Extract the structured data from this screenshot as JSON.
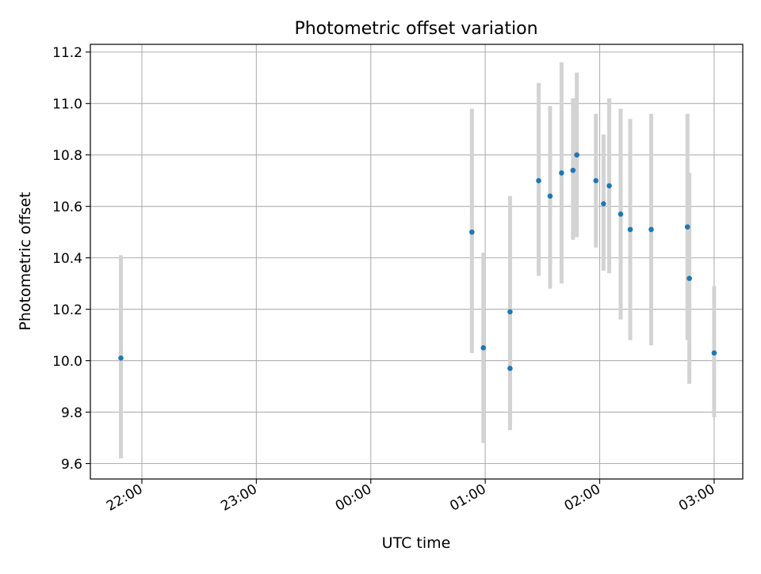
{
  "chart_data": {
    "type": "scatter",
    "title": "Photometric offset variation",
    "xlabel": "UTC time",
    "ylabel": "Photometric offset",
    "xlim": [
      "21:33",
      "03:15"
    ],
    "ylim": [
      9.54,
      11.23
    ],
    "x_ticks": [
      "22:00",
      "23:00",
      "00:00",
      "01:00",
      "02:00",
      "03:00"
    ],
    "y_ticks": [
      "9.6",
      "9.8",
      "10.0",
      "10.2",
      "10.4",
      "10.6",
      "10.8",
      "11.0",
      "11.2"
    ],
    "grid": true,
    "point_color": "#1f77b4",
    "errorbar_color": "#d3d3d3",
    "series": [
      {
        "x": [
          "21:49",
          "00:53",
          "00:59",
          "01:13",
          "01:13",
          "01:28",
          "01:34",
          "01:40",
          "01:46",
          "01:48",
          "01:58",
          "02:02",
          "02:05",
          "02:11",
          "02:16",
          "02:27",
          "02:46",
          "02:47",
          "03:00"
        ],
        "y": [
          10.01,
          10.5,
          10.05,
          9.97,
          10.19,
          10.7,
          10.64,
          10.73,
          10.74,
          10.8,
          10.7,
          10.61,
          10.68,
          10.57,
          10.51,
          10.51,
          10.52,
          10.32,
          10.03
        ],
        "err_low": [
          9.62,
          10.03,
          9.68,
          9.73,
          9.74,
          10.33,
          10.28,
          10.3,
          10.47,
          10.48,
          10.44,
          10.35,
          10.34,
          10.16,
          10.08,
          10.06,
          10.08,
          9.91,
          9.78
        ],
        "err_high": [
          10.41,
          10.98,
          10.42,
          10.21,
          10.64,
          11.08,
          10.99,
          11.16,
          11.02,
          11.12,
          10.96,
          10.88,
          11.02,
          10.98,
          10.94,
          10.96,
          10.96,
          10.73,
          10.29
        ]
      }
    ]
  }
}
